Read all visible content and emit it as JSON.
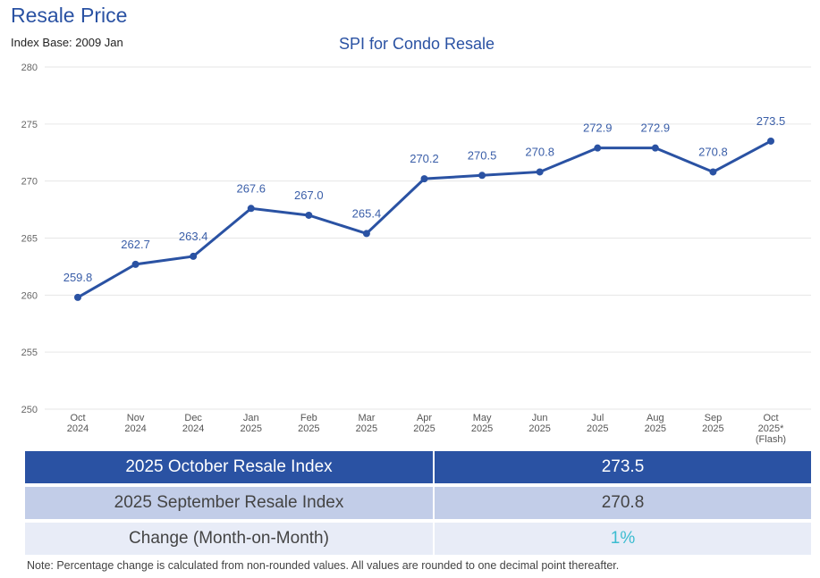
{
  "header": {
    "title": "Resale Price",
    "subtitle": "Index Base: 2009 Jan"
  },
  "chart_data": {
    "type": "line",
    "title": "SPI for Condo Resale",
    "categories": [
      [
        "Oct",
        "2024"
      ],
      [
        "Nov",
        "2024"
      ],
      [
        "Dec",
        "2024"
      ],
      [
        "Jan",
        "2025"
      ],
      [
        "Feb",
        "2025"
      ],
      [
        "Mar",
        "2025"
      ],
      [
        "Apr",
        "2025"
      ],
      [
        "May",
        "2025"
      ],
      [
        "Jun",
        "2025"
      ],
      [
        "Jul",
        "2025"
      ],
      [
        "Aug",
        "2025"
      ],
      [
        "Sep",
        "2025"
      ],
      [
        "Oct",
        "2025*",
        "(Flash)"
      ]
    ],
    "values": [
      259.8,
      262.7,
      263.4,
      267.6,
      267.0,
      265.4,
      270.2,
      270.5,
      270.8,
      272.9,
      272.9,
      270.8,
      273.5
    ],
    "data_labels": [
      "259.8",
      "262.7",
      "263.4",
      "267.6",
      "267.0",
      "265.4",
      "270.2",
      "270.5",
      "270.8",
      "272.9",
      "272.9",
      "270.8",
      "273.5"
    ],
    "ylim": [
      250,
      280
    ],
    "yticks": [
      "250",
      "255",
      "260",
      "265",
      "270",
      "275",
      "280"
    ],
    "grid": true,
    "color": "#2a52a3"
  },
  "table": {
    "rows": [
      {
        "label": "2025 October Resale Index",
        "value": "273.5"
      },
      {
        "label": "2025 September Resale Index",
        "value": "270.8"
      },
      {
        "label": "Change (Month-on-Month)",
        "value": "1%"
      }
    ],
    "change_color": "#3bbcd0"
  },
  "note": "Note: Percentage change is calculated from non-rounded values.  All values are rounded to one decimal point thereafter."
}
